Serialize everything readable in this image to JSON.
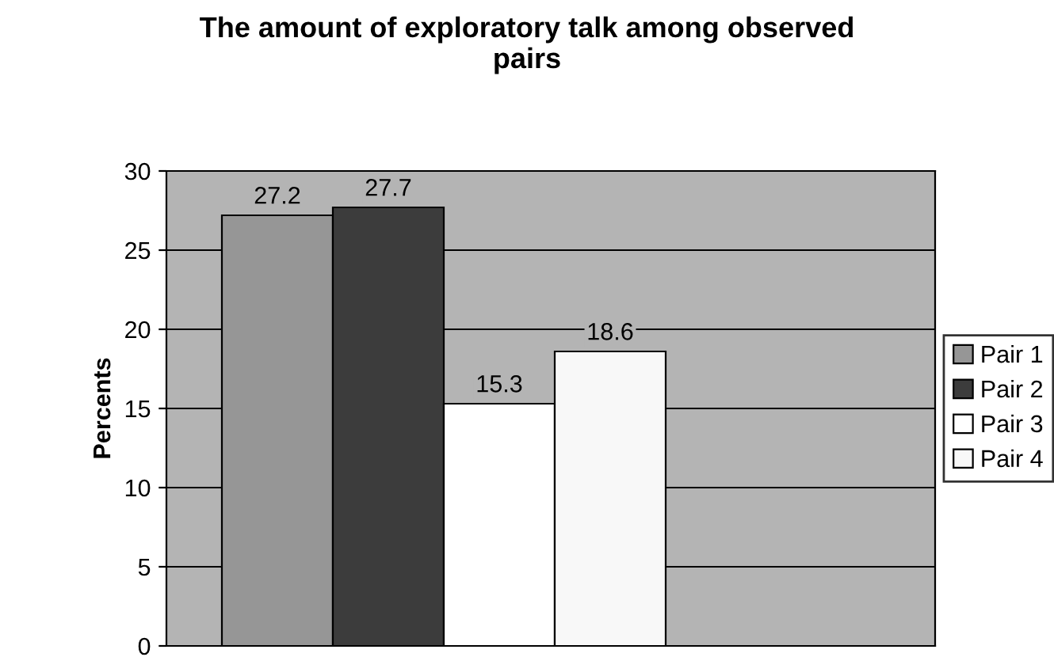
{
  "chart_data": {
    "type": "bar",
    "title": "The amount of exploratory talk among observed\npairs",
    "ylabel": "Percents",
    "categories": [
      null
    ],
    "series": [
      {
        "name": "Pair 1",
        "color": "#969696",
        "values": [
          27.2
        ]
      },
      {
        "name": "Pair 2",
        "color": "#3c3c3c",
        "values": [
          27.7
        ]
      },
      {
        "name": "Pair 3",
        "color": "#ffffff",
        "values": [
          15.3
        ]
      },
      {
        "name": "Pair 4",
        "color": "#f8f8f8",
        "values": [
          18.6
        ]
      }
    ],
    "ylim": [
      0,
      30
    ],
    "yticks": [
      0,
      5,
      10,
      15,
      20,
      25,
      30
    ],
    "grid": "y",
    "legend": "right",
    "data_labels": true
  }
}
